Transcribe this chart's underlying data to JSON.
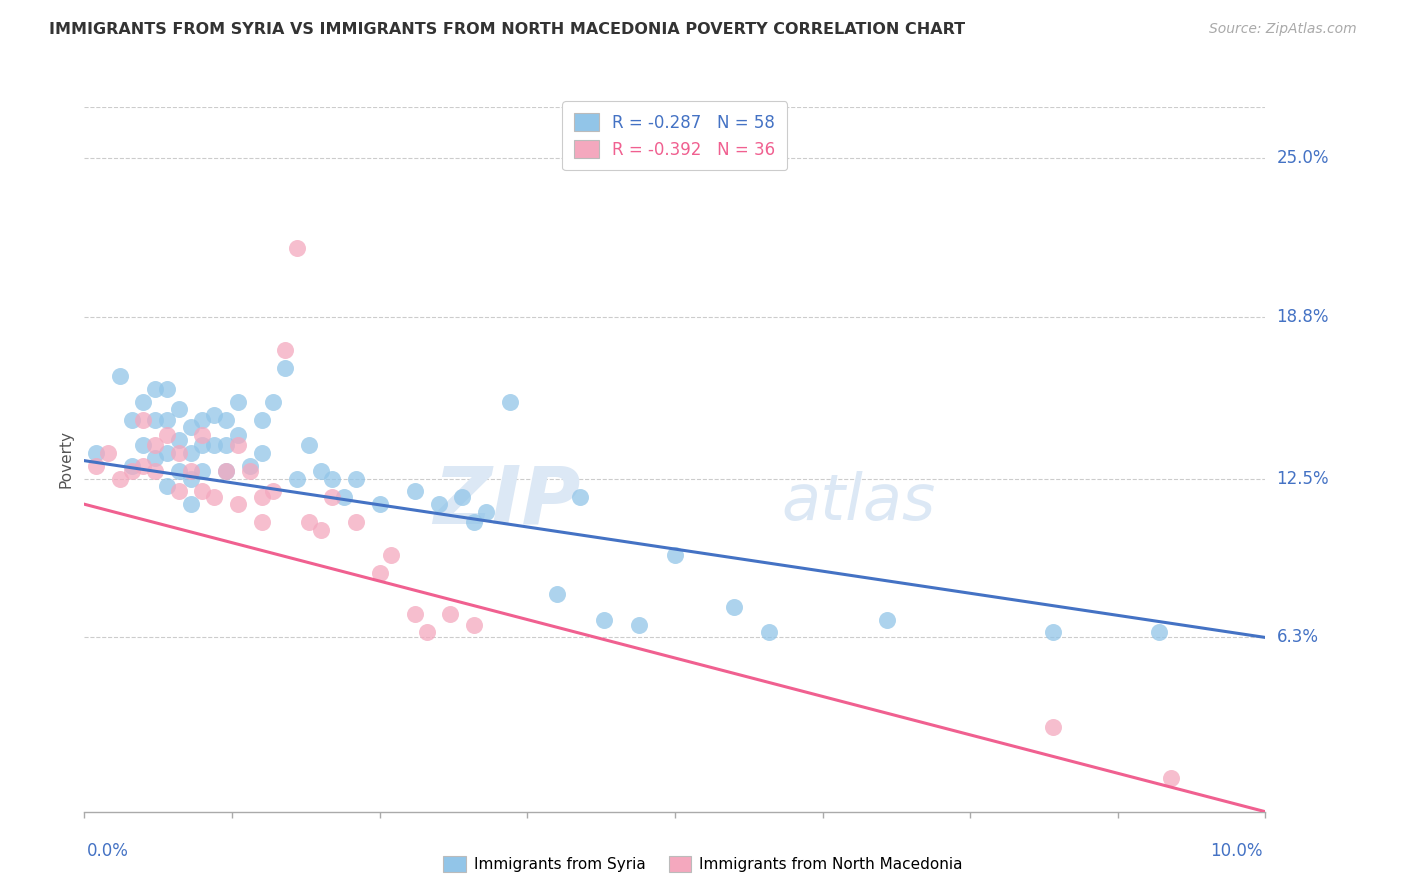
{
  "title": "IMMIGRANTS FROM SYRIA VS IMMIGRANTS FROM NORTH MACEDONIA POVERTY CORRELATION CHART",
  "source": "Source: ZipAtlas.com",
  "ylabel": "Poverty",
  "ytick_labels": [
    "25.0%",
    "18.8%",
    "12.5%",
    "6.3%"
  ],
  "ytick_values": [
    0.25,
    0.188,
    0.125,
    0.063
  ],
  "xlim": [
    0.0,
    0.1
  ],
  "ylim": [
    -0.005,
    0.27
  ],
  "legend_blue_r": "-0.287",
  "legend_blue_n": "58",
  "legend_pink_r": "-0.392",
  "legend_pink_n": "36",
  "legend_label_blue": "Immigrants from Syria",
  "legend_label_pink": "Immigrants from North Macedonia",
  "color_blue": "#92C5E8",
  "color_pink": "#F4A8BE",
  "line_blue": "#4472C4",
  "line_pink": "#F06090",
  "watermark_zip": "ZIP",
  "watermark_atlas": "atlas",
  "syria_x": [
    0.001,
    0.003,
    0.004,
    0.004,
    0.005,
    0.005,
    0.006,
    0.006,
    0.006,
    0.007,
    0.007,
    0.007,
    0.007,
    0.008,
    0.008,
    0.008,
    0.009,
    0.009,
    0.009,
    0.009,
    0.01,
    0.01,
    0.01,
    0.011,
    0.011,
    0.012,
    0.012,
    0.012,
    0.013,
    0.013,
    0.014,
    0.015,
    0.015,
    0.016,
    0.017,
    0.018,
    0.019,
    0.02,
    0.021,
    0.022,
    0.023,
    0.025,
    0.028,
    0.03,
    0.032,
    0.033,
    0.034,
    0.036,
    0.04,
    0.042,
    0.044,
    0.047,
    0.05,
    0.055,
    0.058,
    0.068,
    0.082,
    0.091
  ],
  "syria_y": [
    0.135,
    0.165,
    0.13,
    0.148,
    0.155,
    0.138,
    0.16,
    0.148,
    0.133,
    0.16,
    0.148,
    0.135,
    0.122,
    0.152,
    0.14,
    0.128,
    0.145,
    0.135,
    0.125,
    0.115,
    0.148,
    0.138,
    0.128,
    0.15,
    0.138,
    0.148,
    0.138,
    0.128,
    0.155,
    0.142,
    0.13,
    0.148,
    0.135,
    0.155,
    0.168,
    0.125,
    0.138,
    0.128,
    0.125,
    0.118,
    0.125,
    0.115,
    0.12,
    0.115,
    0.118,
    0.108,
    0.112,
    0.155,
    0.08,
    0.118,
    0.07,
    0.068,
    0.095,
    0.075,
    0.065,
    0.07,
    0.065,
    0.065
  ],
  "macedonia_x": [
    0.001,
    0.002,
    0.003,
    0.004,
    0.005,
    0.005,
    0.006,
    0.006,
    0.007,
    0.008,
    0.008,
    0.009,
    0.01,
    0.01,
    0.011,
    0.012,
    0.013,
    0.013,
    0.014,
    0.015,
    0.015,
    0.016,
    0.017,
    0.018,
    0.019,
    0.02,
    0.021,
    0.023,
    0.025,
    0.026,
    0.028,
    0.029,
    0.031,
    0.033,
    0.082,
    0.092
  ],
  "macedonia_y": [
    0.13,
    0.135,
    0.125,
    0.128,
    0.148,
    0.13,
    0.138,
    0.128,
    0.142,
    0.135,
    0.12,
    0.128,
    0.142,
    0.12,
    0.118,
    0.128,
    0.138,
    0.115,
    0.128,
    0.118,
    0.108,
    0.12,
    0.175,
    0.215,
    0.108,
    0.105,
    0.118,
    0.108,
    0.088,
    0.095,
    0.072,
    0.065,
    0.072,
    0.068,
    0.028,
    0.008
  ],
  "blue_line_x0": 0.0,
  "blue_line_x1": 0.1,
  "blue_line_y0": 0.132,
  "blue_line_y1": 0.063,
  "pink_line_x0": 0.0,
  "pink_line_x1": 0.1,
  "pink_line_y0": 0.115,
  "pink_line_y1": -0.005
}
